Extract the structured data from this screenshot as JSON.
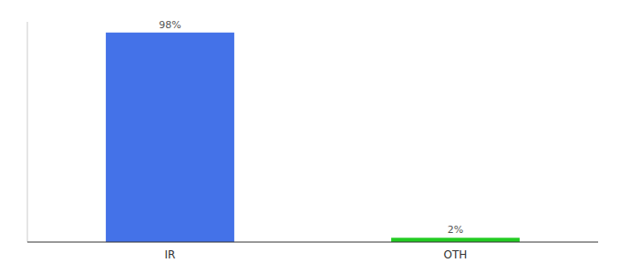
{
  "chart_data": {
    "type": "bar",
    "categories": [
      "IR",
      "OTH"
    ],
    "values": [
      98,
      2
    ],
    "value_labels": [
      "98%",
      "2%"
    ],
    "colors": [
      "#4472e8",
      "#22cc22"
    ],
    "ylim": [
      0,
      103
    ],
    "data_labels": true,
    "tick_labels": "x",
    "grid": false
  }
}
